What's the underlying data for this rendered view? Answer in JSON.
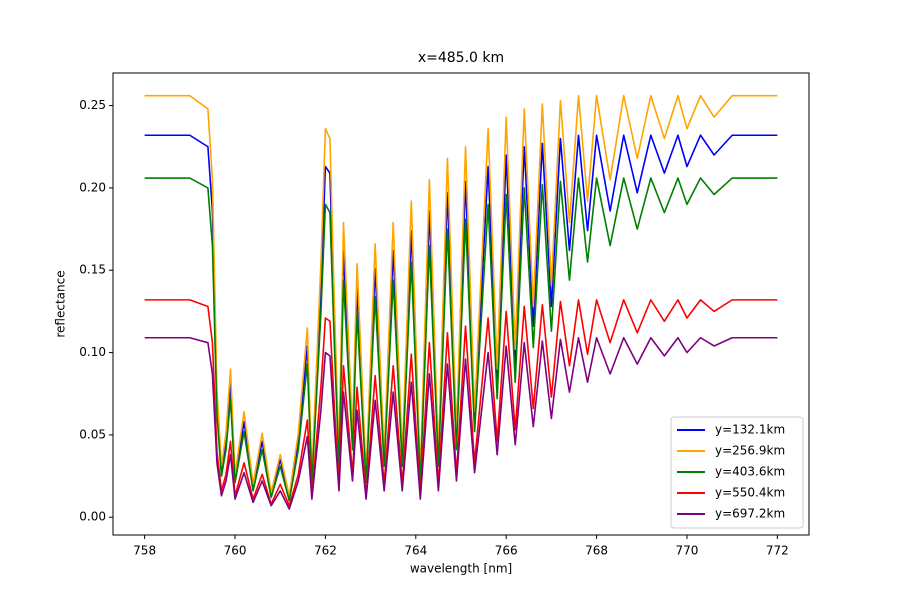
{
  "chart_data": {
    "type": "line",
    "title": "x=485.0 km",
    "xlabel": "wavelength [nm]",
    "ylabel": "reflectance",
    "xlim": [
      757.3,
      772.7
    ],
    "ylim": [
      -0.0108,
      0.2698
    ],
    "xticks": [
      758,
      760,
      762,
      764,
      766,
      768,
      770,
      772
    ],
    "yticks": [
      {
        "value": 0,
        "label": "0.00"
      },
      {
        "value": 0.05,
        "label": "0.05"
      },
      {
        "value": 0.1,
        "label": "0.10"
      },
      {
        "value": 0.15,
        "label": "0.15"
      },
      {
        "value": 0.2,
        "label": "0.20"
      },
      {
        "value": 0.25,
        "label": "0.25"
      }
    ],
    "grid": false,
    "legend": "lower right",
    "x": [
      758,
      759,
      759.4,
      759.5,
      759.6,
      759.7,
      759.8,
      759.9,
      760.0,
      760.2,
      760.4,
      760.6,
      760.8,
      761.0,
      761.2,
      761.4,
      761.6,
      761.7,
      761.8,
      761.9,
      762.0,
      762.1,
      762.2,
      762.3,
      762.4,
      762.6,
      762.7,
      762.9,
      763.1,
      763.3,
      763.5,
      763.7,
      763.9,
      764.1,
      764.3,
      764.5,
      764.7,
      764.9,
      765.1,
      765.3,
      765.6,
      765.8,
      766.0,
      766.2,
      766.4,
      766.6,
      766.8,
      767.0,
      767.2,
      767.4,
      767.6,
      767.8,
      768.0,
      768.3,
      768.6,
      768.9,
      769.2,
      769.5,
      769.8,
      770.0,
      770.3,
      770.6,
      771.0,
      771.5,
      772.0
    ],
    "series": [
      {
        "name": "y=132.1km",
        "color": "#0000ff",
        "values": [
          0.232,
          0.232,
          0.225,
          0.186,
          0.07,
          0.028,
          0.046,
          0.081,
          0.023,
          0.058,
          0.019,
          0.046,
          0.014,
          0.035,
          0.012,
          0.046,
          0.104,
          0.023,
          0.081,
          0.139,
          0.213,
          0.209,
          0.116,
          0.035,
          0.162,
          0.046,
          0.139,
          0.023,
          0.151,
          0.035,
          0.162,
          0.035,
          0.174,
          0.023,
          0.186,
          0.035,
          0.197,
          0.046,
          0.204,
          0.058,
          0.213,
          0.081,
          0.22,
          0.093,
          0.225,
          0.116,
          0.227,
          0.128,
          0.23,
          0.162,
          0.232,
          0.174,
          0.232,
          0.186,
          0.232,
          0.197,
          0.232,
          0.209,
          0.232,
          0.213,
          0.232,
          0.22,
          0.232,
          0.232,
          0.232
        ]
      },
      {
        "name": "y=256.9km",
        "color": "#ffa500",
        "values": [
          0.256,
          0.256,
          0.248,
          0.205,
          0.077,
          0.031,
          0.051,
          0.09,
          0.026,
          0.064,
          0.02,
          0.051,
          0.015,
          0.038,
          0.013,
          0.051,
          0.115,
          0.026,
          0.09,
          0.154,
          0.236,
          0.23,
          0.128,
          0.038,
          0.179,
          0.051,
          0.154,
          0.026,
          0.166,
          0.038,
          0.179,
          0.038,
          0.192,
          0.026,
          0.205,
          0.038,
          0.218,
          0.051,
          0.225,
          0.064,
          0.236,
          0.09,
          0.243,
          0.102,
          0.248,
          0.128,
          0.251,
          0.141,
          0.253,
          0.179,
          0.256,
          0.192,
          0.256,
          0.205,
          0.256,
          0.218,
          0.256,
          0.23,
          0.256,
          0.236,
          0.256,
          0.243,
          0.256,
          0.256,
          0.256
        ]
      },
      {
        "name": "y=403.6km",
        "color": "#008000",
        "values": [
          0.206,
          0.206,
          0.2,
          0.165,
          0.062,
          0.025,
          0.041,
          0.072,
          0.021,
          0.052,
          0.016,
          0.041,
          0.012,
          0.031,
          0.01,
          0.041,
          0.093,
          0.021,
          0.072,
          0.124,
          0.19,
          0.185,
          0.103,
          0.031,
          0.144,
          0.041,
          0.124,
          0.021,
          0.134,
          0.031,
          0.144,
          0.031,
          0.155,
          0.021,
          0.165,
          0.031,
          0.175,
          0.041,
          0.181,
          0.052,
          0.19,
          0.072,
          0.196,
          0.082,
          0.2,
          0.103,
          0.202,
          0.113,
          0.204,
          0.144,
          0.206,
          0.155,
          0.206,
          0.165,
          0.206,
          0.175,
          0.206,
          0.185,
          0.206,
          0.19,
          0.206,
          0.196,
          0.206,
          0.206,
          0.206
        ]
      },
      {
        "name": "y=550.4km",
        "color": "#ff0000",
        "values": [
          0.132,
          0.132,
          0.128,
          0.106,
          0.04,
          0.016,
          0.026,
          0.046,
          0.013,
          0.033,
          0.011,
          0.026,
          0.008,
          0.02,
          0.007,
          0.026,
          0.059,
          0.013,
          0.046,
          0.079,
          0.121,
          0.119,
          0.066,
          0.02,
          0.092,
          0.026,
          0.079,
          0.013,
          0.086,
          0.02,
          0.092,
          0.02,
          0.099,
          0.013,
          0.106,
          0.02,
          0.112,
          0.026,
          0.116,
          0.033,
          0.121,
          0.046,
          0.125,
          0.053,
          0.128,
          0.066,
          0.129,
          0.073,
          0.131,
          0.092,
          0.132,
          0.099,
          0.132,
          0.106,
          0.132,
          0.112,
          0.132,
          0.119,
          0.132,
          0.121,
          0.132,
          0.125,
          0.132,
          0.132,
          0.132
        ]
      },
      {
        "name": "y=697.2km",
        "color": "#800080",
        "values": [
          0.109,
          0.109,
          0.106,
          0.087,
          0.033,
          0.013,
          0.022,
          0.038,
          0.011,
          0.027,
          0.009,
          0.022,
          0.007,
          0.016,
          0.005,
          0.022,
          0.049,
          0.011,
          0.038,
          0.065,
          0.1,
          0.098,
          0.055,
          0.016,
          0.076,
          0.022,
          0.065,
          0.011,
          0.071,
          0.016,
          0.076,
          0.016,
          0.082,
          0.011,
          0.087,
          0.016,
          0.093,
          0.022,
          0.096,
          0.027,
          0.1,
          0.038,
          0.104,
          0.044,
          0.106,
          0.055,
          0.107,
          0.06,
          0.108,
          0.076,
          0.109,
          0.082,
          0.109,
          0.087,
          0.109,
          0.093,
          0.109,
          0.098,
          0.109,
          0.1,
          0.109,
          0.104,
          0.109,
          0.109,
          0.109
        ]
      }
    ]
  }
}
